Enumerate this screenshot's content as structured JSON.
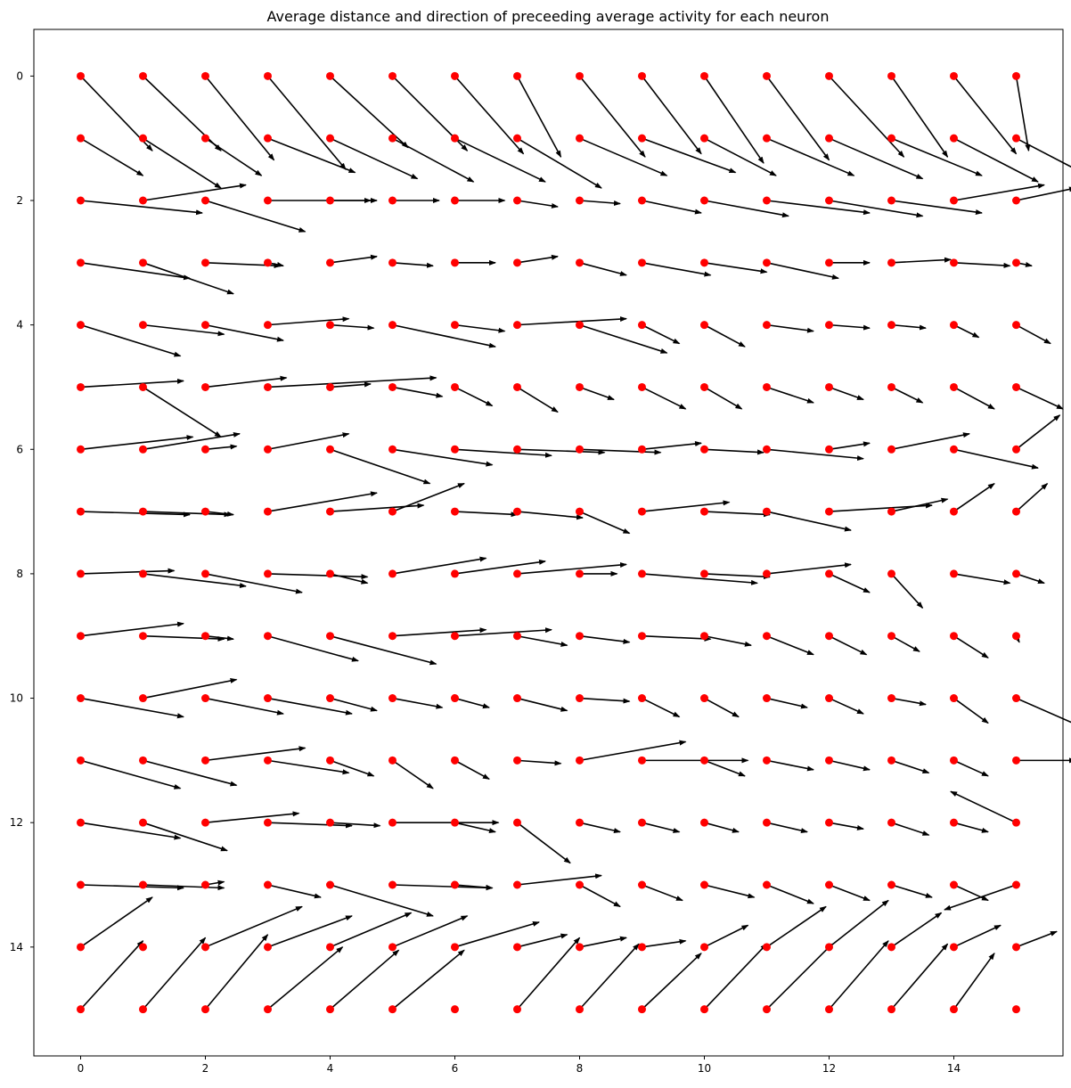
{
  "chart_data": {
    "type": "quiver",
    "title": "Average distance and direction of preceeding average activity for each neuron",
    "xlabel": "",
    "ylabel": "",
    "xlim": [
      -0.75,
      15.75
    ],
    "ylim": [
      15.75,
      -0.75
    ],
    "y_inverted": true,
    "grid": false,
    "legend": "none",
    "xticks": [
      0,
      2,
      4,
      6,
      8,
      10,
      12,
      14
    ],
    "yticks": [
      0,
      2,
      4,
      6,
      8,
      10,
      12,
      14
    ],
    "point_color": "#ff0000",
    "arrow_color": "#000000",
    "grid_size": [
      16,
      16
    ],
    "vectors": [
      [
        [
          1.15,
          1.2
        ],
        [
          1.25,
          1.2
        ],
        [
          1.1,
          1.35
        ],
        [
          1.25,
          1.5
        ],
        [
          1.25,
          1.15
        ],
        [
          1.2,
          1.2
        ],
        [
          1.1,
          1.25
        ],
        [
          0.7,
          1.3
        ],
        [
          1.05,
          1.3
        ],
        [
          0.95,
          1.25
        ],
        [
          0.95,
          1.4
        ],
        [
          1.0,
          1.35
        ],
        [
          1.2,
          1.3
        ],
        [
          0.9,
          1.3
        ],
        [
          1.0,
          1.25
        ],
        [
          0.2,
          1.2
        ]
      ],
      [
        [
          1.0,
          0.6
        ],
        [
          1.25,
          0.8
        ],
        [
          0.9,
          0.6
        ],
        [
          1.4,
          0.55
        ],
        [
          1.4,
          0.65
        ],
        [
          1.3,
          0.7
        ],
        [
          1.45,
          0.7
        ],
        [
          1.35,
          0.8
        ],
        [
          1.4,
          0.6
        ],
        [
          1.5,
          0.55
        ],
        [
          1.15,
          0.6
        ],
        [
          1.4,
          0.6
        ],
        [
          1.5,
          0.65
        ],
        [
          1.45,
          0.6
        ],
        [
          1.35,
          0.7
        ],
        [
          1.15,
          0.6
        ]
      ],
      [
        [
          1.95,
          0.2
        ],
        [
          1.65,
          -0.25
        ],
        [
          1.6,
          0.5
        ],
        [
          1.65,
          0.0
        ],
        [
          0.75,
          0.0
        ],
        [
          0.75,
          0.0
        ],
        [
          0.8,
          0.0
        ],
        [
          0.65,
          0.1
        ],
        [
          0.65,
          0.05
        ],
        [
          0.95,
          0.2
        ],
        [
          1.35,
          0.25
        ],
        [
          1.65,
          0.2
        ],
        [
          1.5,
          0.25
        ],
        [
          1.45,
          0.2
        ],
        [
          1.45,
          -0.25
        ],
        [
          0.95,
          -0.2
        ]
      ],
      [
        [
          1.75,
          0.25
        ],
        [
          1.45,
          0.5
        ],
        [
          1.2,
          0.05
        ],
        [
          0.25,
          0.05
        ],
        [
          0.75,
          -0.1
        ],
        [
          0.65,
          0.05
        ],
        [
          0.65,
          0.0
        ],
        [
          0.65,
          -0.1
        ],
        [
          0.75,
          0.2
        ],
        [
          1.1,
          0.2
        ],
        [
          1.0,
          0.15
        ],
        [
          1.15,
          0.25
        ],
        [
          0.65,
          0.0
        ],
        [
          0.95,
          -0.05
        ],
        [
          0.9,
          0.05
        ],
        [
          0.25,
          0.05
        ]
      ],
      [
        [
          1.6,
          0.5
        ],
        [
          1.3,
          0.15
        ],
        [
          1.25,
          0.25
        ],
        [
          1.3,
          -0.1
        ],
        [
          0.7,
          0.05
        ],
        [
          1.65,
          0.35
        ],
        [
          0.8,
          0.1
        ],
        [
          1.75,
          -0.1
        ],
        [
          1.4,
          0.45
        ],
        [
          0.6,
          0.3
        ],
        [
          0.65,
          0.35
        ],
        [
          0.75,
          0.1
        ],
        [
          0.65,
          0.05
        ],
        [
          0.55,
          0.05
        ],
        [
          0.4,
          0.2
        ],
        [
          0.55,
          0.3
        ]
      ],
      [
        [
          1.65,
          -0.1
        ],
        [
          1.25,
          0.8
        ],
        [
          1.3,
          -0.15
        ],
        [
          2.7,
          -0.15
        ],
        [
          0.65,
          -0.05
        ],
        [
          0.8,
          0.15
        ],
        [
          0.6,
          0.3
        ],
        [
          0.65,
          0.4
        ],
        [
          0.55,
          0.2
        ],
        [
          0.7,
          0.35
        ],
        [
          0.6,
          0.35
        ],
        [
          0.75,
          0.25
        ],
        [
          0.55,
          0.2
        ],
        [
          0.5,
          0.25
        ],
        [
          0.65,
          0.35
        ],
        [
          0.75,
          0.35
        ]
      ],
      [
        [
          1.8,
          -0.2
        ],
        [
          1.55,
          -0.25
        ],
        [
          0.5,
          -0.05
        ],
        [
          1.3,
          -0.25
        ],
        [
          1.6,
          0.55
        ],
        [
          1.6,
          0.25
        ],
        [
          1.55,
          0.1
        ],
        [
          1.4,
          0.05
        ],
        [
          1.3,
          0.05
        ],
        [
          0.95,
          -0.1
        ],
        [
          0.95,
          0.05
        ],
        [
          1.55,
          0.15
        ],
        [
          0.65,
          -0.1
        ],
        [
          1.25,
          -0.25
        ],
        [
          1.35,
          0.3
        ],
        [
          0.7,
          -0.55
        ]
      ],
      [
        [
          1.75,
          0.05
        ],
        [
          1.4,
          0.05
        ],
        [
          0.45,
          0.05
        ],
        [
          1.75,
          -0.3
        ],
        [
          1.5,
          -0.1
        ],
        [
          1.15,
          -0.45
        ],
        [
          1.0,
          0.05
        ],
        [
          1.05,
          0.1
        ],
        [
          0.8,
          0.35
        ],
        [
          1.4,
          -0.15
        ],
        [
          1.05,
          0.05
        ],
        [
          1.35,
          0.3
        ],
        [
          1.65,
          -0.1
        ],
        [
          0.9,
          -0.2
        ],
        [
          0.65,
          -0.45
        ],
        [
          0.5,
          -0.45
        ]
      ],
      [
        [
          1.5,
          -0.05
        ],
        [
          1.65,
          0.2
        ],
        [
          1.55,
          0.3
        ],
        [
          1.6,
          0.05
        ],
        [
          0.6,
          0.15
        ],
        [
          1.5,
          -0.25
        ],
        [
          1.45,
          -0.2
        ],
        [
          1.75,
          -0.15
        ],
        [
          0.6,
          0.0
        ],
        [
          1.85,
          0.15
        ],
        [
          1.05,
          0.05
        ],
        [
          1.35,
          -0.15
        ],
        [
          0.65,
          0.3
        ],
        [
          0.5,
          0.55
        ],
        [
          0.9,
          0.15
        ],
        [
          0.45,
          0.15
        ]
      ],
      [
        [
          1.65,
          -0.2
        ],
        [
          1.3,
          0.05
        ],
        [
          0.45,
          0.05
        ],
        [
          1.45,
          0.4
        ],
        [
          1.7,
          0.45
        ],
        [
          1.5,
          -0.1
        ],
        [
          1.55,
          -0.1
        ],
        [
          0.8,
          0.15
        ],
        [
          0.8,
          0.1
        ],
        [
          1.1,
          0.05
        ],
        [
          0.75,
          0.15
        ],
        [
          0.75,
          0.3
        ],
        [
          0.6,
          0.3
        ],
        [
          0.45,
          0.25
        ],
        [
          0.55,
          0.35
        ],
        [
          0.05,
          0.1
        ]
      ],
      [
        [
          1.65,
          0.3
        ],
        [
          1.5,
          -0.3
        ],
        [
          1.25,
          0.25
        ],
        [
          1.35,
          0.25
        ],
        [
          0.75,
          0.2
        ],
        [
          0.8,
          0.15
        ],
        [
          0.55,
          0.15
        ],
        [
          0.8,
          0.2
        ],
        [
          0.8,
          0.05
        ],
        [
          0.6,
          0.3
        ],
        [
          0.55,
          0.3
        ],
        [
          0.65,
          0.15
        ],
        [
          0.55,
          0.25
        ],
        [
          0.55,
          0.1
        ],
        [
          0.55,
          0.4
        ],
        [
          1.25,
          0.55
        ]
      ],
      [
        [
          1.6,
          0.45
        ],
        [
          1.5,
          0.4
        ],
        [
          1.6,
          -0.2
        ],
        [
          1.3,
          0.2
        ],
        [
          0.7,
          0.25
        ],
        [
          0.65,
          0.45
        ],
        [
          0.55,
          0.3
        ],
        [
          0.7,
          0.05
        ],
        [
          1.7,
          -0.3
        ],
        [
          1.7,
          0.0
        ],
        [
          0.65,
          0.25
        ],
        [
          0.75,
          0.15
        ],
        [
          0.65,
          0.15
        ],
        [
          0.6,
          0.2
        ],
        [
          0.55,
          0.25
        ],
        [
          0.95,
          0.0
        ]
      ],
      [
        [
          1.6,
          0.25
        ],
        [
          1.35,
          0.45
        ],
        [
          1.5,
          -0.15
        ],
        [
          1.35,
          0.05
        ],
        [
          0.8,
          0.05
        ],
        [
          1.7,
          0.0
        ],
        [
          0.65,
          0.15
        ],
        [
          0.85,
          0.65
        ],
        [
          0.65,
          0.15
        ],
        [
          0.6,
          0.15
        ],
        [
          0.55,
          0.15
        ],
        [
          0.65,
          0.15
        ],
        [
          0.55,
          0.1
        ],
        [
          0.6,
          0.2
        ],
        [
          0.55,
          0.15
        ],
        [
          -1.05,
          -0.5
        ]
      ],
      [
        [
          1.65,
          0.05
        ],
        [
          1.3,
          0.05
        ],
        [
          0.3,
          -0.05
        ],
        [
          0.85,
          0.2
        ],
        [
          1.65,
          0.5
        ],
        [
          1.6,
          0.05
        ],
        [
          0.6,
          0.05
        ],
        [
          1.35,
          -0.15
        ],
        [
          0.65,
          0.35
        ],
        [
          0.65,
          0.25
        ],
        [
          0.8,
          0.2
        ],
        [
          0.75,
          0.3
        ],
        [
          0.65,
          0.25
        ],
        [
          0.65,
          0.2
        ],
        [
          0.55,
          0.25
        ],
        [
          -1.15,
          0.4
        ]
      ],
      [
        [
          1.15,
          -0.8
        ],
        [
          0.0,
          0.0
        ],
        [
          1.55,
          -0.65
        ],
        [
          1.35,
          -0.5
        ],
        [
          1.3,
          -0.55
        ],
        [
          1.2,
          -0.5
        ],
        [
          1.35,
          -0.4
        ],
        [
          0.8,
          -0.2
        ],
        [
          0.75,
          -0.15
        ],
        [
          0.7,
          -0.1
        ],
        [
          0.7,
          -0.35
        ],
        [
          0.95,
          -0.65
        ],
        [
          0.95,
          -0.75
        ],
        [
          0.8,
          -0.55
        ],
        [
          0.75,
          -0.35
        ],
        [
          0.65,
          -0.25
        ]
      ],
      [
        [
          1.0,
          -1.1
        ],
        [
          1.0,
          -1.15
        ],
        [
          1.0,
          -1.2
        ],
        [
          1.2,
          -1.0
        ],
        [
          1.1,
          -0.95
        ],
        [
          1.15,
          -0.95
        ],
        [
          0.0,
          0.0
        ],
        [
          1.0,
          -1.15
        ],
        [
          0.95,
          -1.05
        ],
        [
          0.95,
          -0.9
        ],
        [
          1.0,
          -1.05
        ],
        [
          1.05,
          -1.05
        ],
        [
          0.95,
          -1.1
        ],
        [
          0.9,
          -1.05
        ],
        [
          0.65,
          -0.9
        ],
        [
          0.0,
          0.0
        ]
      ]
    ]
  }
}
